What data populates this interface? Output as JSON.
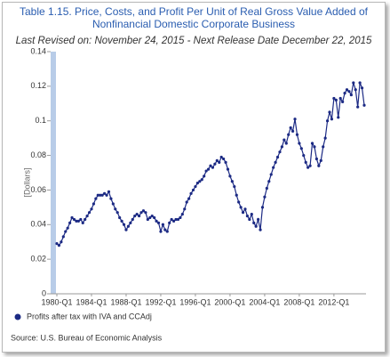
{
  "chart_data": {
    "type": "line",
    "title": [
      "Table 1.15. Price, Costs, and Profit Per Unit of Real Gross Value Added of",
      "Nonfinancial Domestic Corporate Business"
    ],
    "subtitle": "Last Revised on: November 24, 2015 - Next Release Date December 22, 2015",
    "y_label": "[Dollars]",
    "source": "Source: U.S. Bureau of Economic  Analysis",
    "categories": [
      "1980-Q1",
      null,
      null,
      null,
      null,
      null,
      null,
      null,
      null,
      null,
      null,
      null,
      null,
      null,
      null,
      null,
      "1984-Q1",
      null,
      null,
      null,
      null,
      null,
      null,
      null,
      null,
      null,
      null,
      null,
      null,
      null,
      null,
      null,
      "1988-Q1",
      null,
      null,
      null,
      null,
      null,
      null,
      null,
      null,
      null,
      null,
      null,
      null,
      null,
      null,
      null,
      "1992-Q1",
      null,
      null,
      null,
      null,
      null,
      null,
      null,
      null,
      null,
      null,
      null,
      null,
      null,
      null,
      null,
      "1996-Q1",
      null,
      null,
      null,
      null,
      null,
      null,
      null,
      null,
      null,
      null,
      null,
      null,
      null,
      null,
      null,
      "2000-Q1",
      null,
      null,
      null,
      null,
      null,
      null,
      null,
      null,
      null,
      null,
      null,
      null,
      null,
      null,
      null,
      "2004-Q1",
      null,
      null,
      null,
      null,
      null,
      null,
      null,
      null,
      null,
      null,
      null,
      null,
      null,
      null,
      null,
      "2008-Q1",
      null,
      null,
      null,
      null,
      null,
      null,
      null,
      null,
      null,
      null,
      null,
      null,
      null,
      null,
      null,
      "2012-Q1",
      null,
      null,
      null,
      null,
      null,
      null,
      null,
      null,
      null,
      null,
      null,
      null,
      null,
      null
    ],
    "series": [
      {
        "name": "Profits after tax with IVA and CCAdj",
        "color": "#1c2a84",
        "values": [
          0.029,
          0.028,
          0.03,
          0.033,
          0.036,
          0.038,
          0.041,
          0.044,
          0.043,
          0.042,
          0.042,
          0.043,
          0.041,
          0.043,
          0.045,
          0.047,
          0.049,
          0.052,
          0.055,
          0.057,
          0.057,
          0.057,
          0.058,
          0.057,
          0.059,
          0.055,
          0.052,
          0.049,
          0.047,
          0.044,
          0.042,
          0.04,
          0.037,
          0.039,
          0.041,
          0.043,
          0.045,
          0.046,
          0.045,
          0.047,
          0.048,
          0.047,
          0.043,
          0.044,
          0.045,
          0.044,
          0.042,
          0.041,
          0.036,
          0.04,
          0.037,
          0.036,
          0.041,
          0.043,
          0.042,
          0.043,
          0.043,
          0.044,
          0.046,
          0.049,
          0.053,
          0.055,
          0.058,
          0.06,
          0.062,
          0.064,
          0.065,
          0.066,
          0.068,
          0.071,
          0.072,
          0.074,
          0.073,
          0.075,
          0.077,
          0.076,
          0.079,
          0.078,
          0.076,
          0.072,
          0.068,
          0.065,
          0.062,
          0.057,
          0.053,
          0.05,
          0.047,
          0.049,
          0.045,
          0.043,
          0.046,
          0.041,
          0.039,
          0.043,
          0.037,
          0.05,
          0.056,
          0.061,
          0.065,
          0.069,
          0.073,
          0.076,
          0.079,
          0.082,
          0.085,
          0.089,
          0.087,
          0.092,
          0.096,
          0.094,
          0.101,
          0.092,
          0.087,
          0.084,
          0.08,
          0.076,
          0.073,
          0.074,
          0.087,
          0.085,
          0.078,
          0.074,
          0.077,
          0.085,
          0.09,
          0.1,
          0.105,
          0.101,
          0.113,
          0.112,
          0.102,
          0.113,
          0.111,
          0.116,
          0.118,
          0.117,
          0.115,
          0.122,
          0.118,
          0.108,
          0.122,
          0.119,
          0.109
        ]
      }
    ],
    "ylim": [
      0,
      0.14
    ],
    "yticks": [
      0,
      0.02,
      0.04,
      0.06,
      0.08,
      0.1,
      0.12,
      0.14
    ],
    "grid": false,
    "legend": "bottom-left"
  }
}
